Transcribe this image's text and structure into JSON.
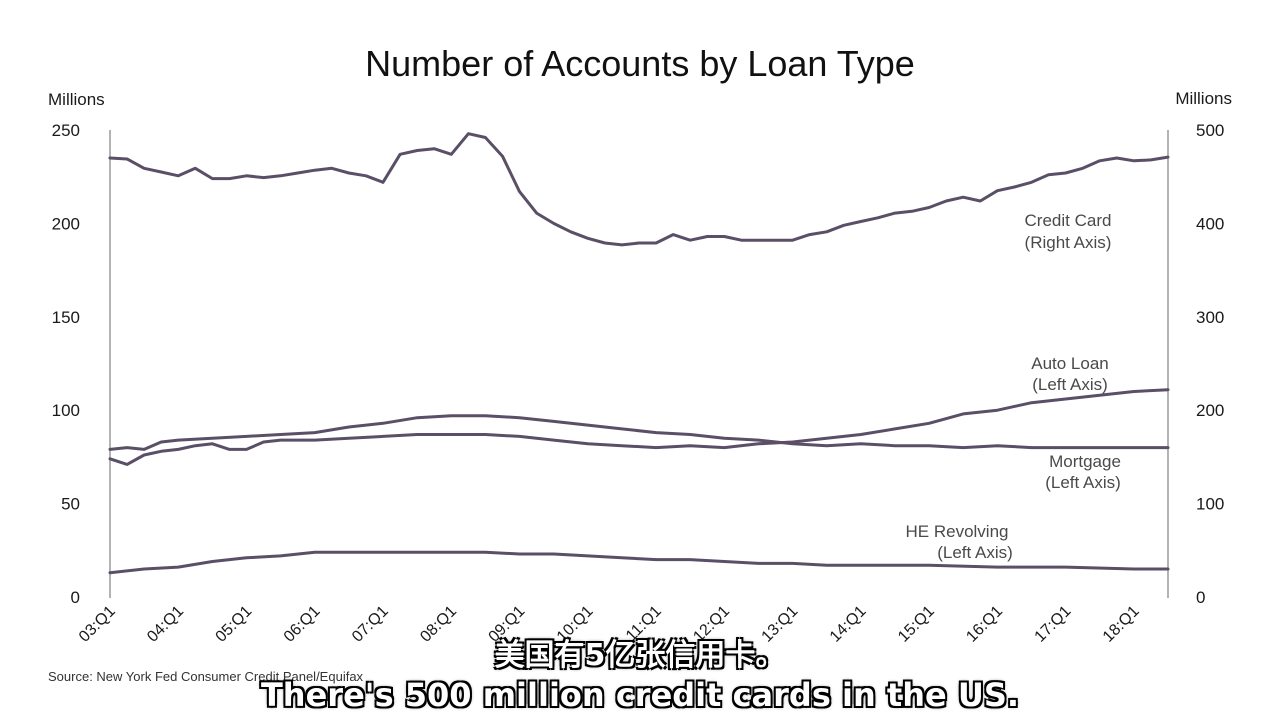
{
  "chart_data": {
    "type": "line",
    "title": "Number of Accounts by Loan Type",
    "left_axis_label": "Millions",
    "right_axis_label": "Millions",
    "left_ylim": [
      0,
      250
    ],
    "right_ylim": [
      0,
      500
    ],
    "left_ticks": [
      "0",
      "50",
      "100",
      "150",
      "200",
      "250"
    ],
    "right_ticks": [
      "0",
      "100",
      "200",
      "300",
      "400",
      "500"
    ],
    "x_start": 2003.0,
    "x_end": 2018.5,
    "x_ticks": [
      {
        "label": "03:Q1",
        "x": 2003
      },
      {
        "label": "04:Q1",
        "x": 2004
      },
      {
        "label": "05:Q1",
        "x": 2005
      },
      {
        "label": "06:Q1",
        "x": 2006
      },
      {
        "label": "07:Q1",
        "x": 2007
      },
      {
        "label": "08:Q1",
        "x": 2008
      },
      {
        "label": "09:Q1",
        "x": 2009
      },
      {
        "label": "10:Q1",
        "x": 2010
      },
      {
        "label": "11:Q1",
        "x": 2011
      },
      {
        "label": "12:Q1",
        "x": 2012
      },
      {
        "label": "13:Q1",
        "x": 2013
      },
      {
        "label": "14:Q1",
        "x": 2014
      },
      {
        "label": "15:Q1",
        "x": 2015
      },
      {
        "label": "16:Q1",
        "x": 2016
      },
      {
        "label": "17:Q1",
        "x": 2017
      },
      {
        "label": "18:Q1",
        "x": 2018
      }
    ],
    "grid": false,
    "series": [
      {
        "name": "Credit Card",
        "label_line1": "Credit Card",
        "label_line2": "(Right Axis)",
        "axis": "right",
        "color": "#5a4f66",
        "points": [
          [
            2003.0,
            470
          ],
          [
            2003.25,
            469
          ],
          [
            2003.5,
            459
          ],
          [
            2003.75,
            455
          ],
          [
            2004.0,
            451
          ],
          [
            2004.25,
            459
          ],
          [
            2004.5,
            448
          ],
          [
            2004.75,
            448
          ],
          [
            2005.0,
            451
          ],
          [
            2005.25,
            449
          ],
          [
            2005.5,
            451
          ],
          [
            2005.75,
            454
          ],
          [
            2006.0,
            457
          ],
          [
            2006.25,
            459
          ],
          [
            2006.5,
            454
          ],
          [
            2006.75,
            451
          ],
          [
            2007.0,
            444
          ],
          [
            2007.25,
            474
          ],
          [
            2007.5,
            478
          ],
          [
            2007.75,
            480
          ],
          [
            2008.0,
            474
          ],
          [
            2008.25,
            496
          ],
          [
            2008.5,
            492
          ],
          [
            2008.75,
            472
          ],
          [
            2009.0,
            434
          ],
          [
            2009.25,
            411
          ],
          [
            2009.5,
            400
          ],
          [
            2009.75,
            391
          ],
          [
            2010.0,
            384
          ],
          [
            2010.25,
            379
          ],
          [
            2010.5,
            377
          ],
          [
            2010.75,
            379
          ],
          [
            2011.0,
            379
          ],
          [
            2011.25,
            388
          ],
          [
            2011.5,
            382
          ],
          [
            2011.75,
            386
          ],
          [
            2012.0,
            386
          ],
          [
            2012.25,
            382
          ],
          [
            2012.5,
            382
          ],
          [
            2012.75,
            382
          ],
          [
            2013.0,
            382
          ],
          [
            2013.25,
            388
          ],
          [
            2013.5,
            391
          ],
          [
            2013.75,
            398
          ],
          [
            2014.0,
            402
          ],
          [
            2014.25,
            406
          ],
          [
            2014.5,
            411
          ],
          [
            2014.75,
            413
          ],
          [
            2015.0,
            417
          ],
          [
            2015.25,
            424
          ],
          [
            2015.5,
            428
          ],
          [
            2015.75,
            424
          ],
          [
            2016.0,
            435
          ],
          [
            2016.25,
            439
          ],
          [
            2016.5,
            444
          ],
          [
            2016.75,
            452
          ],
          [
            2017.0,
            454
          ],
          [
            2017.25,
            459
          ],
          [
            2017.5,
            467
          ],
          [
            2017.75,
            470
          ],
          [
            2018.0,
            467
          ],
          [
            2018.25,
            468
          ],
          [
            2018.5,
            471
          ]
        ]
      },
      {
        "name": "Auto Loan",
        "label_line1": "Auto Loan",
        "label_line2": "(Left Axis)",
        "axis": "left",
        "color": "#5a4f66",
        "points": [
          [
            2003.0,
            74
          ],
          [
            2003.25,
            71
          ],
          [
            2003.5,
            76
          ],
          [
            2003.75,
            78
          ],
          [
            2004.0,
            79
          ],
          [
            2004.25,
            81
          ],
          [
            2004.5,
            82
          ],
          [
            2004.75,
            79
          ],
          [
            2005.0,
            79
          ],
          [
            2005.25,
            83
          ],
          [
            2005.5,
            84
          ],
          [
            2005.75,
            84
          ],
          [
            2006.0,
            84
          ],
          [
            2006.5,
            85
          ],
          [
            2007.0,
            86
          ],
          [
            2007.5,
            87
          ],
          [
            2008.0,
            87
          ],
          [
            2008.5,
            87
          ],
          [
            2009.0,
            86
          ],
          [
            2009.5,
            84
          ],
          [
            2010.0,
            82
          ],
          [
            2010.5,
            81
          ],
          [
            2011.0,
            80
          ],
          [
            2011.5,
            81
          ],
          [
            2012.0,
            80
          ],
          [
            2012.5,
            82
          ],
          [
            2013.0,
            83
          ],
          [
            2013.5,
            85
          ],
          [
            2014.0,
            87
          ],
          [
            2014.5,
            90
          ],
          [
            2015.0,
            93
          ],
          [
            2015.5,
            98
          ],
          [
            2016.0,
            100
          ],
          [
            2016.5,
            104
          ],
          [
            2017.0,
            106
          ],
          [
            2017.5,
            108
          ],
          [
            2018.0,
            110
          ],
          [
            2018.5,
            111
          ]
        ]
      },
      {
        "name": "Mortgage",
        "label_line1": "Mortgage",
        "label_line2": "(Left Axis)",
        "axis": "left",
        "color": "#5a4f66",
        "points": [
          [
            2003.0,
            79
          ],
          [
            2003.25,
            80
          ],
          [
            2003.5,
            79
          ],
          [
            2003.75,
            83
          ],
          [
            2004.0,
            84
          ],
          [
            2004.5,
            85
          ],
          [
            2005.0,
            86
          ],
          [
            2005.5,
            87
          ],
          [
            2006.0,
            88
          ],
          [
            2006.5,
            91
          ],
          [
            2007.0,
            93
          ],
          [
            2007.5,
            96
          ],
          [
            2008.0,
            97
          ],
          [
            2008.5,
            97
          ],
          [
            2009.0,
            96
          ],
          [
            2009.5,
            94
          ],
          [
            2010.0,
            92
          ],
          [
            2010.5,
            90
          ],
          [
            2011.0,
            88
          ],
          [
            2011.5,
            87
          ],
          [
            2012.0,
            85
          ],
          [
            2012.5,
            84
          ],
          [
            2013.0,
            82
          ],
          [
            2013.5,
            81
          ],
          [
            2014.0,
            82
          ],
          [
            2014.5,
            81
          ],
          [
            2015.0,
            81
          ],
          [
            2015.5,
            80
          ],
          [
            2016.0,
            81
          ],
          [
            2016.5,
            80
          ],
          [
            2017.0,
            80
          ],
          [
            2017.5,
            80
          ],
          [
            2018.0,
            80
          ],
          [
            2018.5,
            80
          ]
        ]
      },
      {
        "name": "HE Revolving",
        "label_line1": "HE Revolving",
        "label_line2": "(Left Axis)",
        "axis": "left",
        "color": "#5a4f66",
        "points": [
          [
            2003.0,
            13
          ],
          [
            2003.5,
            15
          ],
          [
            2004.0,
            16
          ],
          [
            2004.5,
            19
          ],
          [
            2005.0,
            21
          ],
          [
            2005.5,
            22
          ],
          [
            2006.0,
            24
          ],
          [
            2006.5,
            24
          ],
          [
            2007.0,
            24
          ],
          [
            2007.5,
            24
          ],
          [
            2008.0,
            24
          ],
          [
            2008.5,
            24
          ],
          [
            2009.0,
            23
          ],
          [
            2009.5,
            23
          ],
          [
            2010.0,
            22
          ],
          [
            2010.5,
            21
          ],
          [
            2011.0,
            20
          ],
          [
            2011.5,
            20
          ],
          [
            2012.0,
            19
          ],
          [
            2012.5,
            18
          ],
          [
            2013.0,
            18
          ],
          [
            2013.5,
            17
          ],
          [
            2014.0,
            17
          ],
          [
            2015.0,
            17
          ],
          [
            2016.0,
            16
          ],
          [
            2017.0,
            16
          ],
          [
            2018.0,
            15
          ],
          [
            2018.5,
            15
          ]
        ]
      }
    ],
    "source": "Source: New York Fed Consumer Credit Panel/Equifax"
  },
  "subtitles": {
    "zh": "美国有5亿张信用卡。",
    "en": "There's 500 million credit cards in the US."
  }
}
